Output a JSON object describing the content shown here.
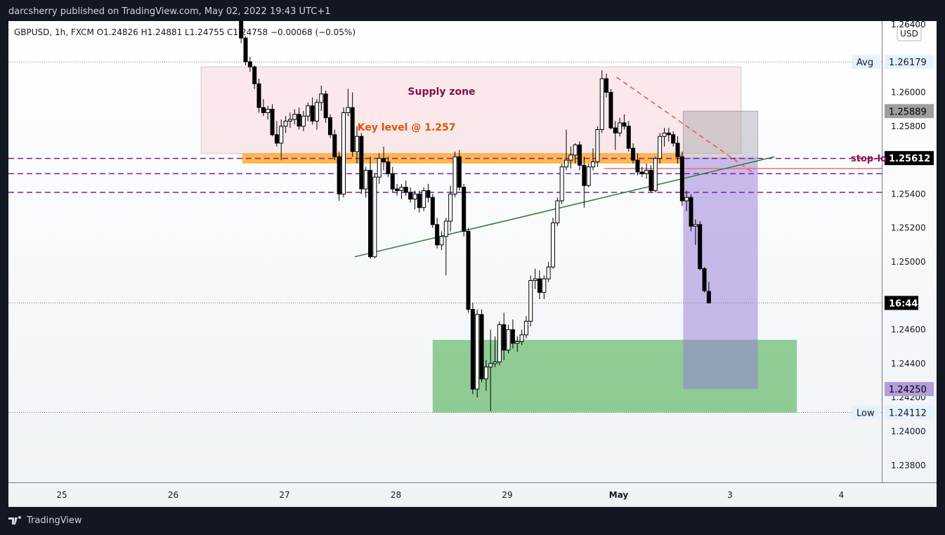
{
  "header": {
    "publisher_line": "darcsherry published on TradingView.com, May 02, 2022 19:43 UTC+1"
  },
  "footer": {
    "brand": "TradingView"
  },
  "chart_data": {
    "type": "candlestick",
    "symbol_line": "GBPUSD, 1h, FXCM  O1.24826  H1.24881  L1.24755  C1.24758  −0.00068 (−0.05%)",
    "currency": "USD",
    "y_range": [
      1.237,
      1.2642
    ],
    "y_ticks": [
      "1.26400",
      "1.26000",
      "1.25800",
      "1.25400",
      "1.25200",
      "1.25000",
      "1.24600",
      "1.24400",
      "1.24200",
      "1.24000",
      "1.23800"
    ],
    "x_labels": [
      {
        "label": "25",
        "t": -2
      },
      {
        "label": "26",
        "t": -1
      },
      {
        "label": "27",
        "t": 0
      },
      {
        "label": "28",
        "t": 1
      },
      {
        "label": "29",
        "t": 2
      },
      {
        "label": "May",
        "t": 3
      },
      {
        "label": "3",
        "t": 4
      },
      {
        "label": "4",
        "t": 5
      }
    ],
    "price_labels": [
      {
        "name": "avg",
        "side_label": "Avg",
        "value": "1.26179",
        "price": 1.26179
      },
      {
        "name": "stop",
        "side_label": "stop-lo",
        "value": "1.25612",
        "price": 1.25612
      },
      {
        "name": "target",
        "side_label": "",
        "value": "1.25889",
        "price": 1.25889
      },
      {
        "name": "tp",
        "side_label": "",
        "value": "1.24250",
        "price": 1.2425
      },
      {
        "name": "low",
        "side_label": "Low",
        "value": "1.24112",
        "price": 1.24112
      },
      {
        "name": "countdown",
        "side_label": "",
        "value": "16:44",
        "price": 1.24758
      }
    ],
    "annotations": {
      "supply_zone": {
        "label": "Supply zone",
        "x_from": -0.75,
        "x_to": 4.1,
        "price_top": 1.2615,
        "price_bottom": 1.2564
      },
      "key_level": {
        "label": "Key level @ 1.257",
        "x_from": -0.38,
        "x_to": 3.58,
        "price_top": 1.2564,
        "price_bottom": 1.2558
      },
      "demand_zone": {
        "x_from": 1.33,
        "x_to": 4.6,
        "price_top": 1.2454,
        "price_bottom": 1.24112
      },
      "short_position": {
        "x_from": 3.58,
        "x_to": 4.25,
        "entry": 1.25612,
        "stop": 1.25889,
        "target": 1.2425
      },
      "dashed_levels": [
        1.2561,
        1.2552,
        1.2541
      ],
      "stop_line": {
        "price": 1.2555,
        "x_from": 2.87
      },
      "trendline_up": {
        "x1": 0.63,
        "y1": 1.2503,
        "x2": 4.4,
        "y2": 1.2562
      },
      "trendline_down": {
        "x1": 2.98,
        "y1": 1.2609,
        "x2": 4.22,
        "y2": 1.2552
      },
      "dotted_levels": [
        1.26179,
        1.24758,
        1.24112
      ]
    },
    "candles": [
      [
        -0.39,
        1.2645,
        1.2647,
        1.2629,
        1.2632
      ],
      [
        -0.35,
        1.2632,
        1.2633,
        1.2616,
        1.2618
      ],
      [
        -0.31,
        1.2618,
        1.2621,
        1.2612,
        1.2615
      ],
      [
        -0.27,
        1.2615,
        1.2616,
        1.2602,
        1.2605
      ],
      [
        -0.23,
        1.2605,
        1.2608,
        1.2588,
        1.2591
      ],
      [
        -0.19,
        1.2591,
        1.2596,
        1.2586,
        1.2588
      ],
      [
        -0.15,
        1.2588,
        1.2592,
        1.2584,
        1.259
      ],
      [
        -0.11,
        1.259,
        1.2593,
        1.2574,
        1.2575
      ],
      [
        -0.07,
        1.2575,
        1.2583,
        1.2568,
        1.257
      ],
      [
        -0.03,
        1.257,
        1.2584,
        1.256,
        1.258
      ],
      [
        0.01,
        1.258,
        1.2586,
        1.2576,
        1.2583
      ],
      [
        0.05,
        1.2583,
        1.2588,
        1.2579,
        1.2584
      ],
      [
        0.09,
        1.2584,
        1.259,
        1.2581,
        1.2587
      ],
      [
        0.13,
        1.2587,
        1.2591,
        1.2578,
        1.258
      ],
      [
        0.17,
        1.258,
        1.2589,
        1.2577,
        1.2586
      ],
      [
        0.21,
        1.2586,
        1.2594,
        1.2583,
        1.2592
      ],
      [
        0.25,
        1.2592,
        1.2597,
        1.2581,
        1.2583
      ],
      [
        0.29,
        1.2583,
        1.2596,
        1.2578,
        1.2594
      ],
      [
        0.33,
        1.2594,
        1.2604,
        1.2589,
        1.2599
      ],
      [
        0.37,
        1.2599,
        1.2601,
        1.2582,
        1.2585
      ],
      [
        0.41,
        1.2585,
        1.2587,
        1.2573,
        1.2575
      ],
      [
        0.45,
        1.2575,
        1.2578,
        1.256,
        1.2562
      ],
      [
        0.49,
        1.2562,
        1.2565,
        1.2536,
        1.254
      ],
      [
        0.53,
        1.254,
        1.2591,
        1.2538,
        1.2588
      ],
      [
        0.57,
        1.2588,
        1.2602,
        1.2586,
        1.2591
      ],
      [
        0.61,
        1.2591,
        1.26,
        1.2562,
        1.2565
      ],
      [
        0.65,
        1.2565,
        1.258,
        1.2558,
        1.2574
      ],
      [
        0.69,
        1.2574,
        1.2576,
        1.254,
        1.2543
      ],
      [
        0.73,
        1.2543,
        1.2556,
        1.2538,
        1.2554
      ],
      [
        0.77,
        1.2554,
        1.2562,
        1.2502,
        1.2503
      ],
      [
        0.81,
        1.2503,
        1.2552,
        1.2502,
        1.255
      ],
      [
        0.85,
        1.255,
        1.2564,
        1.2546,
        1.2561
      ],
      [
        0.89,
        1.2561,
        1.2568,
        1.2554,
        1.2559
      ],
      [
        0.93,
        1.2559,
        1.2562,
        1.255,
        1.2552
      ],
      [
        0.97,
        1.2552,
        1.2556,
        1.2541,
        1.2543
      ],
      [
        1.01,
        1.2543,
        1.2546,
        1.2539,
        1.2542
      ],
      [
        1.05,
        1.2542,
        1.2546,
        1.2537,
        1.2544
      ],
      [
        1.09,
        1.2544,
        1.2548,
        1.2539,
        1.2541
      ],
      [
        1.13,
        1.2541,
        1.2544,
        1.2535,
        1.2537
      ],
      [
        1.17,
        1.2537,
        1.2542,
        1.2531,
        1.254
      ],
      [
        1.21,
        1.254,
        1.2542,
        1.2529,
        1.2532
      ],
      [
        1.25,
        1.2532,
        1.2544,
        1.253,
        1.2542
      ],
      [
        1.29,
        1.2542,
        1.2546,
        1.2535,
        1.2538
      ],
      [
        1.33,
        1.2538,
        1.254,
        1.252,
        1.2522
      ],
      [
        1.37,
        1.2522,
        1.2526,
        1.2508,
        1.251
      ],
      [
        1.41,
        1.251,
        1.2518,
        1.2507,
        1.2515
      ],
      [
        1.45,
        1.2515,
        1.2526,
        1.2492,
        1.2524
      ],
      [
        1.49,
        1.2524,
        1.2545,
        1.2518,
        1.254
      ],
      [
        1.53,
        1.254,
        1.2565,
        1.2538,
        1.2562
      ],
      [
        1.57,
        1.2562,
        1.2566,
        1.2542,
        1.2544
      ],
      [
        1.61,
        1.2544,
        1.2546,
        1.2515,
        1.2518
      ],
      [
        1.65,
        1.2518,
        1.252,
        1.247,
        1.2472
      ],
      [
        1.69,
        1.2472,
        1.2476,
        1.2422,
        1.2425
      ],
      [
        1.73,
        1.2425,
        1.2472,
        1.242,
        1.2469
      ],
      [
        1.77,
        1.2469,
        1.2472,
        1.2429,
        1.2431
      ],
      [
        1.81,
        1.2431,
        1.2442,
        1.2424,
        1.2438
      ],
      [
        1.85,
        1.2438,
        1.246,
        1.2412,
        1.244
      ],
      [
        1.89,
        1.244,
        1.2456,
        1.2438,
        1.2441
      ],
      [
        1.93,
        1.2441,
        1.2465,
        1.2439,
        1.2463
      ],
      [
        1.97,
        1.2463,
        1.247,
        1.2442,
        1.2448
      ],
      [
        2.01,
        1.2448,
        1.2463,
        1.2446,
        1.246
      ],
      [
        2.05,
        1.246,
        1.2466,
        1.2449,
        1.2452
      ],
      [
        2.09,
        1.2452,
        1.2456,
        1.2447,
        1.2453
      ],
      [
        2.13,
        1.2453,
        1.246,
        1.2451,
        1.2457
      ],
      [
        2.17,
        1.2457,
        1.2468,
        1.2455,
        1.2465
      ],
      [
        2.21,
        1.2465,
        1.2492,
        1.2462,
        1.2489
      ],
      [
        2.25,
        1.2489,
        1.2496,
        1.2484,
        1.249
      ],
      [
        2.29,
        1.249,
        1.2495,
        1.2478,
        1.2482
      ],
      [
        2.33,
        1.2482,
        1.2492,
        1.2478,
        1.249
      ],
      [
        2.37,
        1.249,
        1.25,
        1.2488,
        1.2497
      ],
      [
        2.41,
        1.2497,
        1.2526,
        1.2496,
        1.2523
      ],
      [
        2.45,
        1.2523,
        1.2538,
        1.2521,
        1.2536
      ],
      [
        2.49,
        1.2536,
        1.2558,
        1.2534,
        1.2556
      ],
      [
        2.53,
        1.2556,
        1.2578,
        1.2554,
        1.256
      ],
      [
        2.57,
        1.256,
        1.2568,
        1.2555,
        1.2563
      ],
      [
        2.61,
        1.2563,
        1.257,
        1.2558,
        1.2569
      ],
      [
        2.65,
        1.2569,
        1.2571,
        1.2554,
        1.2557
      ],
      [
        2.69,
        1.2557,
        1.2562,
        1.2532,
        1.2545
      ],
      [
        2.73,
        1.2545,
        1.2558,
        1.2544,
        1.2556
      ],
      [
        2.77,
        1.2556,
        1.2567,
        1.2554,
        1.2559
      ],
      [
        2.81,
        1.2559,
        1.258,
        1.2556,
        1.2578
      ],
      [
        2.85,
        1.2578,
        1.2613,
        1.2576,
        1.2608
      ],
      [
        2.89,
        1.2608,
        1.2611,
        1.2597,
        1.26
      ],
      [
        2.93,
        1.26,
        1.2602,
        1.2578,
        1.2579
      ],
      [
        2.97,
        1.2579,
        1.2583,
        1.2566,
        1.2576
      ],
      [
        3.01,
        1.2576,
        1.2585,
        1.2574,
        1.2582
      ],
      [
        3.05,
        1.2582,
        1.2587,
        1.2578,
        1.258
      ],
      [
        3.09,
        1.258,
        1.2583,
        1.2565,
        1.2567
      ],
      [
        3.13,
        1.2567,
        1.257,
        1.2558,
        1.256
      ],
      [
        3.17,
        1.256,
        1.2564,
        1.2551,
        1.2553
      ],
      [
        3.21,
        1.2553,
        1.2556,
        1.255,
        1.2552
      ],
      [
        3.25,
        1.2552,
        1.2558,
        1.2549,
        1.2554
      ],
      [
        3.29,
        1.2554,
        1.2557,
        1.2541,
        1.2542
      ],
      [
        3.33,
        1.2542,
        1.2562,
        1.2541,
        1.2561
      ],
      [
        3.37,
        1.2561,
        1.2576,
        1.2558,
        1.2574
      ],
      [
        3.41,
        1.2574,
        1.2579,
        1.2568,
        1.2576
      ],
      [
        3.45,
        1.2576,
        1.2579,
        1.2571,
        1.2575
      ],
      [
        3.49,
        1.2575,
        1.2577,
        1.2568,
        1.257
      ],
      [
        3.53,
        1.257,
        1.2574,
        1.2558,
        1.2562
      ],
      [
        3.57,
        1.2562,
        1.2565,
        1.2533,
        1.2536
      ],
      [
        3.61,
        1.2536,
        1.2542,
        1.253,
        1.2538
      ],
      [
        3.65,
        1.2538,
        1.254,
        1.2518,
        1.2521
      ],
      [
        3.69,
        1.2521,
        1.2525,
        1.251,
        1.2522
      ],
      [
        3.73,
        1.2522,
        1.2524,
        1.2495,
        1.2496
      ],
      [
        3.77,
        1.2496,
        1.2497,
        1.2482,
        1.2483
      ],
      [
        3.81,
        1.24826,
        1.24881,
        1.24755,
        1.24758
      ]
    ]
  }
}
